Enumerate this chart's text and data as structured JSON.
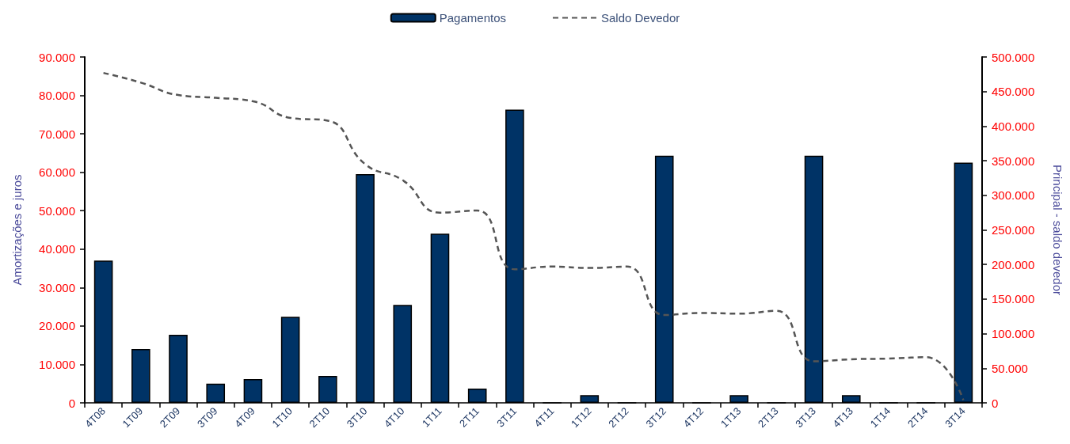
{
  "chart_data": {
    "type": "bar",
    "categories": [
      "4T08",
      "1T09",
      "2T09",
      "3T09",
      "4T09",
      "1T10",
      "2T10",
      "3T10",
      "4T10",
      "1T11",
      "2T11",
      "3T11",
      "4T11",
      "1T12",
      "2T12",
      "3T12",
      "4T12",
      "1T13",
      "2T13",
      "3T13",
      "4T13",
      "1T14",
      "2T14",
      "3T14"
    ],
    "series": [
      {
        "name": "Pagamentos",
        "color": "#003366",
        "values": [
          37000,
          14000,
          17700,
          5000,
          6200,
          22400,
          7000,
          59500,
          25500,
          44000,
          3700,
          76300,
          0,
          2000,
          0,
          64300,
          0,
          2000,
          0,
          64300,
          2000,
          0,
          0,
          62500
        ]
      },
      {
        "name": "Saldo Devedor",
        "type": "line",
        "axis": "y2",
        "color": "#555555",
        "values": [
          477000,
          463000,
          445000,
          441000,
          436000,
          412000,
          408000,
          345000,
          322000,
          275000,
          278000,
          193000,
          197000,
          195000,
          197000,
          127000,
          130000,
          129000,
          133000,
          60000,
          63000,
          64000,
          66000,
          4000
        ]
      }
    ],
    "ylabel": "Amortizações e juros",
    "y2label": "Principal - saldo devedor",
    "ylim": [
      0,
      90000
    ],
    "yticks": [
      {
        "value": 0,
        "label": "0"
      },
      {
        "value": 10000,
        "label": "10.000"
      },
      {
        "value": 20000,
        "label": "20.000"
      },
      {
        "value": 30000,
        "label": "30.000"
      },
      {
        "value": 40000,
        "label": "40.000"
      },
      {
        "value": 50000,
        "label": "50.000"
      },
      {
        "value": 60000,
        "label": "60.000"
      },
      {
        "value": 70000,
        "label": "70.000"
      },
      {
        "value": 80000,
        "label": "80.000"
      },
      {
        "value": 90000,
        "label": "90.000"
      }
    ],
    "y2lim": [
      0,
      500000
    ],
    "y2ticks": [
      {
        "value": 0,
        "label": "0"
      },
      {
        "value": 50000,
        "label": "50.000"
      },
      {
        "value": 100000,
        "label": "100.000"
      },
      {
        "value": 150000,
        "label": "150.000"
      },
      {
        "value": 200000,
        "label": "200.000"
      },
      {
        "value": 250000,
        "label": "250.000"
      },
      {
        "value": 300000,
        "label": "300.000"
      },
      {
        "value": 350000,
        "label": "350.000"
      },
      {
        "value": 400000,
        "label": "400.000"
      },
      {
        "value": 450000,
        "label": "450.000"
      },
      {
        "value": 500000,
        "label": "500.000"
      }
    ],
    "legend": "top",
    "grid": false,
    "marker": "none",
    "line_style": "dashed"
  }
}
